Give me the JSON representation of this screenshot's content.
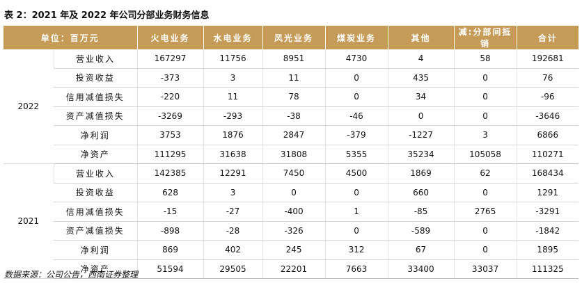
{
  "title": "表 2：2021 年及 2022 年公司分部业务财务信息",
  "table": {
    "header": [
      "单位：百万元",
      "火电业务",
      "水电业务",
      "风光业务",
      "煤炭业务",
      "其他",
      "减:分部间抵销",
      "合计"
    ],
    "groups": [
      {
        "year": "2022",
        "rows": [
          {
            "label": "营业收入",
            "values": [
              167297,
              11756,
              8951,
              4730,
              4,
              58,
              192681
            ]
          },
          {
            "label": "投资收益",
            "values": [
              -373,
              3,
              11,
              0,
              435,
              0,
              76
            ]
          },
          {
            "label": "信用减值损失",
            "values": [
              -220,
              11,
              78,
              0,
              34,
              0,
              -96
            ]
          },
          {
            "label": "资产减值损失",
            "values": [
              -3269,
              -293,
              -38,
              -46,
              0,
              0,
              -3646
            ]
          },
          {
            "label": "净利润",
            "values": [
              3753,
              1876,
              2847,
              -379,
              -1227,
              3,
              6866
            ]
          },
          {
            "label": "净资产",
            "values": [
              111295,
              31638,
              31808,
              5355,
              35234,
              105058,
              110271
            ]
          }
        ]
      },
      {
        "year": "2021",
        "rows": [
          {
            "label": "营业收入",
            "values": [
              142385,
              12291,
              7450,
              4500,
              1869,
              62,
              168434
            ]
          },
          {
            "label": "投资收益",
            "values": [
              628,
              3,
              0,
              0,
              660,
              0,
              1291
            ]
          },
          {
            "label": "信用减值损失",
            "values": [
              -15,
              -27,
              -400,
              1,
              -85,
              2765,
              -3291
            ]
          },
          {
            "label": "资产减值损失",
            "values": [
              -898,
              -28,
              -326,
              0,
              -589,
              0,
              -1842
            ]
          },
          {
            "label": "净利润",
            "values": [
              869,
              402,
              245,
              312,
              67,
              0,
              1895
            ]
          },
          {
            "label": "净资产",
            "values": [
              51594,
              29505,
              22201,
              7663,
              33400,
              33037,
              111325
            ]
          }
        ]
      }
    ]
  },
  "source": "数据来源：公司公告，西南证券整理"
}
